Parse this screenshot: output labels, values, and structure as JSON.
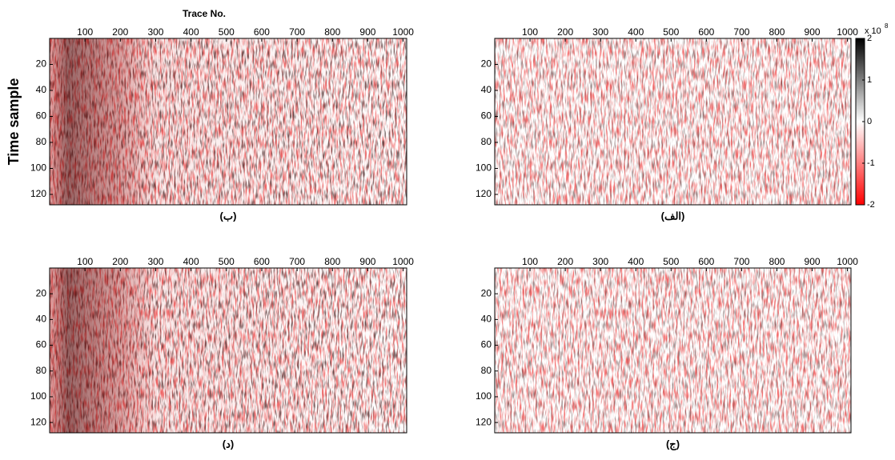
{
  "chart_data": [
    {
      "type": "seismic",
      "title": "Trace No.",
      "y_label": "Time sample",
      "caption": "(ب)",
      "strong_band": true,
      "xlim": [
        0,
        1010
      ],
      "xticks": [
        100,
        200,
        300,
        400,
        500,
        600,
        700,
        800,
        900,
        1000
      ],
      "ylim": [
        0,
        128
      ],
      "yticks": [
        20,
        40,
        60,
        80,
        100,
        120
      ]
    },
    {
      "type": "seismic",
      "caption": "(الف)",
      "strong_band": false,
      "xlim": [
        0,
        1010
      ],
      "xticks": [
        100,
        200,
        300,
        400,
        500,
        600,
        700,
        800,
        900,
        1000
      ],
      "ylim": [
        0,
        128
      ],
      "yticks": [
        20,
        40,
        60,
        80,
        100,
        120
      ]
    },
    {
      "type": "seismic",
      "caption": "(د)",
      "strong_band": true,
      "xlim": [
        0,
        1010
      ],
      "xticks": [
        100,
        200,
        300,
        400,
        500,
        600,
        700,
        800,
        900,
        1000
      ],
      "ylim": [
        0,
        128
      ],
      "yticks": [
        20,
        40,
        60,
        80,
        100,
        120
      ]
    },
    {
      "type": "seismic",
      "caption": "(ج)",
      "strong_band": false,
      "xlim": [
        0,
        1010
      ],
      "xticks": [
        100,
        200,
        300,
        400,
        500,
        600,
        700,
        800,
        900,
        1000
      ],
      "ylim": [
        0,
        128
      ],
      "yticks": [
        20,
        40,
        60,
        80,
        100,
        120
      ]
    }
  ],
  "colorbar": {
    "scale_label": "x 10",
    "scale_exponent": "8",
    "lim": [
      -2,
      2
    ],
    "ticks": [
      2,
      1,
      0,
      -1,
      -2
    ],
    "colors": [
      "#ff0000",
      "#ffffff",
      "#000000"
    ]
  }
}
